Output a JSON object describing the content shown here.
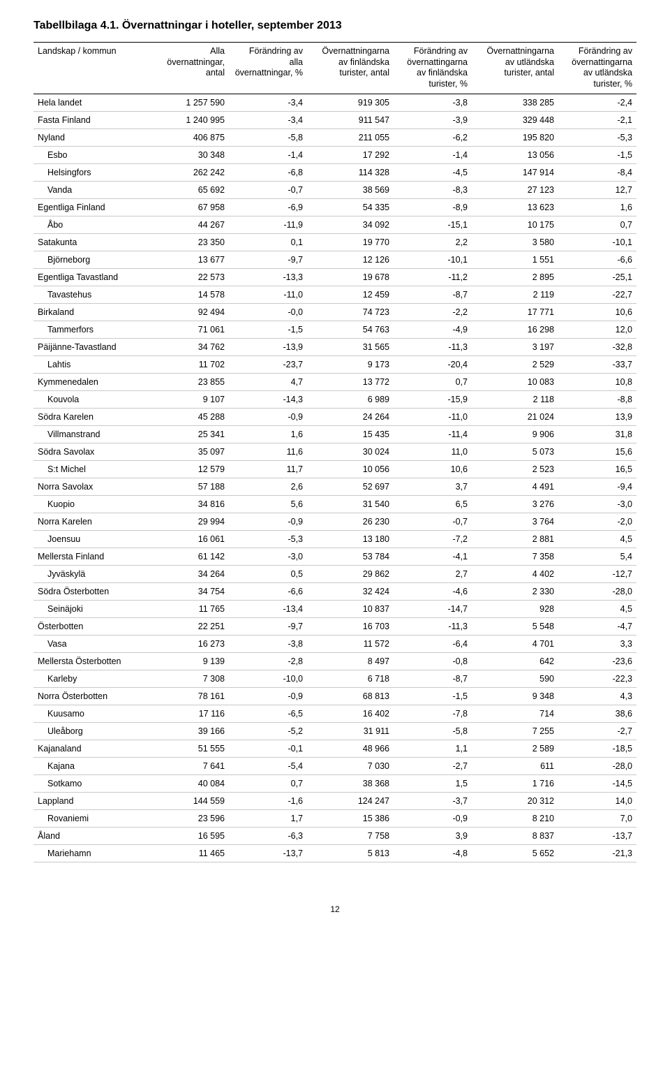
{
  "title": "Tabellbilaga 4.1. Övernattningar i hoteller, september 2013",
  "table": {
    "columns": [
      "Landskap / kommun",
      "Alla övernattningar, antal",
      "Förändring av alla övernattningar, %",
      "Övernattningarna av finländska turister, antal",
      "Förändring av övernattingarna av finländska turister, %",
      "Övernattningarna av utländska turister, antal",
      "Förändring av övernattingarna av utländska turister, %"
    ],
    "rows": [
      {
        "indent": 0,
        "c": [
          "Hela landet",
          "1 257 590",
          "-3,4",
          "919 305",
          "-3,8",
          "338 285",
          "-2,4"
        ]
      },
      {
        "indent": 0,
        "c": [
          "Fasta Finland",
          "1 240 995",
          "-3,4",
          "911 547",
          "-3,9",
          "329 448",
          "-2,1"
        ]
      },
      {
        "indent": 0,
        "c": [
          "Nyland",
          "406 875",
          "-5,8",
          "211 055",
          "-6,2",
          "195 820",
          "-5,3"
        ]
      },
      {
        "indent": 1,
        "c": [
          "Esbo",
          "30 348",
          "-1,4",
          "17 292",
          "-1,4",
          "13 056",
          "-1,5"
        ]
      },
      {
        "indent": 1,
        "c": [
          "Helsingfors",
          "262 242",
          "-6,8",
          "114 328",
          "-4,5",
          "147 914",
          "-8,4"
        ]
      },
      {
        "indent": 1,
        "c": [
          "Vanda",
          "65 692",
          "-0,7",
          "38 569",
          "-8,3",
          "27 123",
          "12,7"
        ]
      },
      {
        "indent": 0,
        "c": [
          "Egentliga Finland",
          "67 958",
          "-6,9",
          "54 335",
          "-8,9",
          "13 623",
          "1,6"
        ]
      },
      {
        "indent": 1,
        "c": [
          "Åbo",
          "44 267",
          "-11,9",
          "34 092",
          "-15,1",
          "10 175",
          "0,7"
        ]
      },
      {
        "indent": 0,
        "c": [
          "Satakunta",
          "23 350",
          "0,1",
          "19 770",
          "2,2",
          "3 580",
          "-10,1"
        ]
      },
      {
        "indent": 1,
        "c": [
          "Björneborg",
          "13 677",
          "-9,7",
          "12 126",
          "-10,1",
          "1 551",
          "-6,6"
        ]
      },
      {
        "indent": 0,
        "c": [
          "Egentliga Tavastland",
          "22 573",
          "-13,3",
          "19 678",
          "-11,2",
          "2 895",
          "-25,1"
        ]
      },
      {
        "indent": 1,
        "c": [
          "Tavastehus",
          "14 578",
          "-11,0",
          "12 459",
          "-8,7",
          "2 119",
          "-22,7"
        ]
      },
      {
        "indent": 0,
        "c": [
          "Birkaland",
          "92 494",
          "-0,0",
          "74 723",
          "-2,2",
          "17 771",
          "10,6"
        ]
      },
      {
        "indent": 1,
        "c": [
          "Tammerfors",
          "71 061",
          "-1,5",
          "54 763",
          "-4,9",
          "16 298",
          "12,0"
        ]
      },
      {
        "indent": 0,
        "c": [
          "Päijänne-Tavastland",
          "34 762",
          "-13,9",
          "31 565",
          "-11,3",
          "3 197",
          "-32,8"
        ]
      },
      {
        "indent": 1,
        "c": [
          "Lahtis",
          "11 702",
          "-23,7",
          "9 173",
          "-20,4",
          "2 529",
          "-33,7"
        ]
      },
      {
        "indent": 0,
        "c": [
          "Kymmenedalen",
          "23 855",
          "4,7",
          "13 772",
          "0,7",
          "10 083",
          "10,8"
        ]
      },
      {
        "indent": 1,
        "c": [
          "Kouvola",
          "9 107",
          "-14,3",
          "6 989",
          "-15,9",
          "2 118",
          "-8,8"
        ]
      },
      {
        "indent": 0,
        "c": [
          "Södra Karelen",
          "45 288",
          "-0,9",
          "24 264",
          "-11,0",
          "21 024",
          "13,9"
        ]
      },
      {
        "indent": 1,
        "c": [
          "Villmanstrand",
          "25 341",
          "1,6",
          "15 435",
          "-11,4",
          "9 906",
          "31,8"
        ]
      },
      {
        "indent": 0,
        "c": [
          "Södra Savolax",
          "35 097",
          "11,6",
          "30 024",
          "11,0",
          "5 073",
          "15,6"
        ]
      },
      {
        "indent": 1,
        "c": [
          "S:t Michel",
          "12 579",
          "11,7",
          "10 056",
          "10,6",
          "2 523",
          "16,5"
        ]
      },
      {
        "indent": 0,
        "c": [
          "Norra Savolax",
          "57 188",
          "2,6",
          "52 697",
          "3,7",
          "4 491",
          "-9,4"
        ]
      },
      {
        "indent": 1,
        "c": [
          "Kuopio",
          "34 816",
          "5,6",
          "31 540",
          "6,5",
          "3 276",
          "-3,0"
        ]
      },
      {
        "indent": 0,
        "c": [
          "Norra Karelen",
          "29 994",
          "-0,9",
          "26 230",
          "-0,7",
          "3 764",
          "-2,0"
        ]
      },
      {
        "indent": 1,
        "c": [
          "Joensuu",
          "16 061",
          "-5,3",
          "13 180",
          "-7,2",
          "2 881",
          "4,5"
        ]
      },
      {
        "indent": 0,
        "c": [
          "Mellersta Finland",
          "61 142",
          "-3,0",
          "53 784",
          "-4,1",
          "7 358",
          "5,4"
        ]
      },
      {
        "indent": 1,
        "c": [
          "Jyväskylä",
          "34 264",
          "0,5",
          "29 862",
          "2,7",
          "4 402",
          "-12,7"
        ]
      },
      {
        "indent": 0,
        "c": [
          "Södra Österbotten",
          "34 754",
          "-6,6",
          "32 424",
          "-4,6",
          "2 330",
          "-28,0"
        ]
      },
      {
        "indent": 1,
        "c": [
          "Seinäjoki",
          "11 765",
          "-13,4",
          "10 837",
          "-14,7",
          "928",
          "4,5"
        ]
      },
      {
        "indent": 0,
        "c": [
          "Österbotten",
          "22 251",
          "-9,7",
          "16 703",
          "-11,3",
          "5 548",
          "-4,7"
        ]
      },
      {
        "indent": 1,
        "c": [
          "Vasa",
          "16 273",
          "-3,8",
          "11 572",
          "-6,4",
          "4 701",
          "3,3"
        ]
      },
      {
        "indent": 0,
        "c": [
          "Mellersta Österbotten",
          "9 139",
          "-2,8",
          "8 497",
          "-0,8",
          "642",
          "-23,6"
        ]
      },
      {
        "indent": 1,
        "c": [
          "Karleby",
          "7 308",
          "-10,0",
          "6 718",
          "-8,7",
          "590",
          "-22,3"
        ]
      },
      {
        "indent": 0,
        "c": [
          "Norra Österbotten",
          "78 161",
          "-0,9",
          "68 813",
          "-1,5",
          "9 348",
          "4,3"
        ]
      },
      {
        "indent": 1,
        "c": [
          "Kuusamo",
          "17 116",
          "-6,5",
          "16 402",
          "-7,8",
          "714",
          "38,6"
        ]
      },
      {
        "indent": 1,
        "c": [
          "Uleåborg",
          "39 166",
          "-5,2",
          "31 911",
          "-5,8",
          "7 255",
          "-2,7"
        ]
      },
      {
        "indent": 0,
        "c": [
          "Kajanaland",
          "51 555",
          "-0,1",
          "48 966",
          "1,1",
          "2 589",
          "-18,5"
        ]
      },
      {
        "indent": 1,
        "c": [
          "Kajana",
          "7 641",
          "-5,4",
          "7 030",
          "-2,7",
          "611",
          "-28,0"
        ]
      },
      {
        "indent": 1,
        "c": [
          "Sotkamo",
          "40 084",
          "0,7",
          "38 368",
          "1,5",
          "1 716",
          "-14,5"
        ]
      },
      {
        "indent": 0,
        "c": [
          "Lappland",
          "144 559",
          "-1,6",
          "124 247",
          "-3,7",
          "20 312",
          "14,0"
        ]
      },
      {
        "indent": 1,
        "c": [
          "Rovaniemi",
          "23 596",
          "1,7",
          "15 386",
          "-0,9",
          "8 210",
          "7,0"
        ]
      },
      {
        "indent": 0,
        "c": [
          "Åland",
          "16 595",
          "-6,3",
          "7 758",
          "3,9",
          "8 837",
          "-13,7"
        ]
      },
      {
        "indent": 1,
        "c": [
          "Mariehamn",
          "11 465",
          "-13,7",
          "5 813",
          "-4,8",
          "5 652",
          "-21,3"
        ]
      }
    ]
  },
  "page_number": "12"
}
